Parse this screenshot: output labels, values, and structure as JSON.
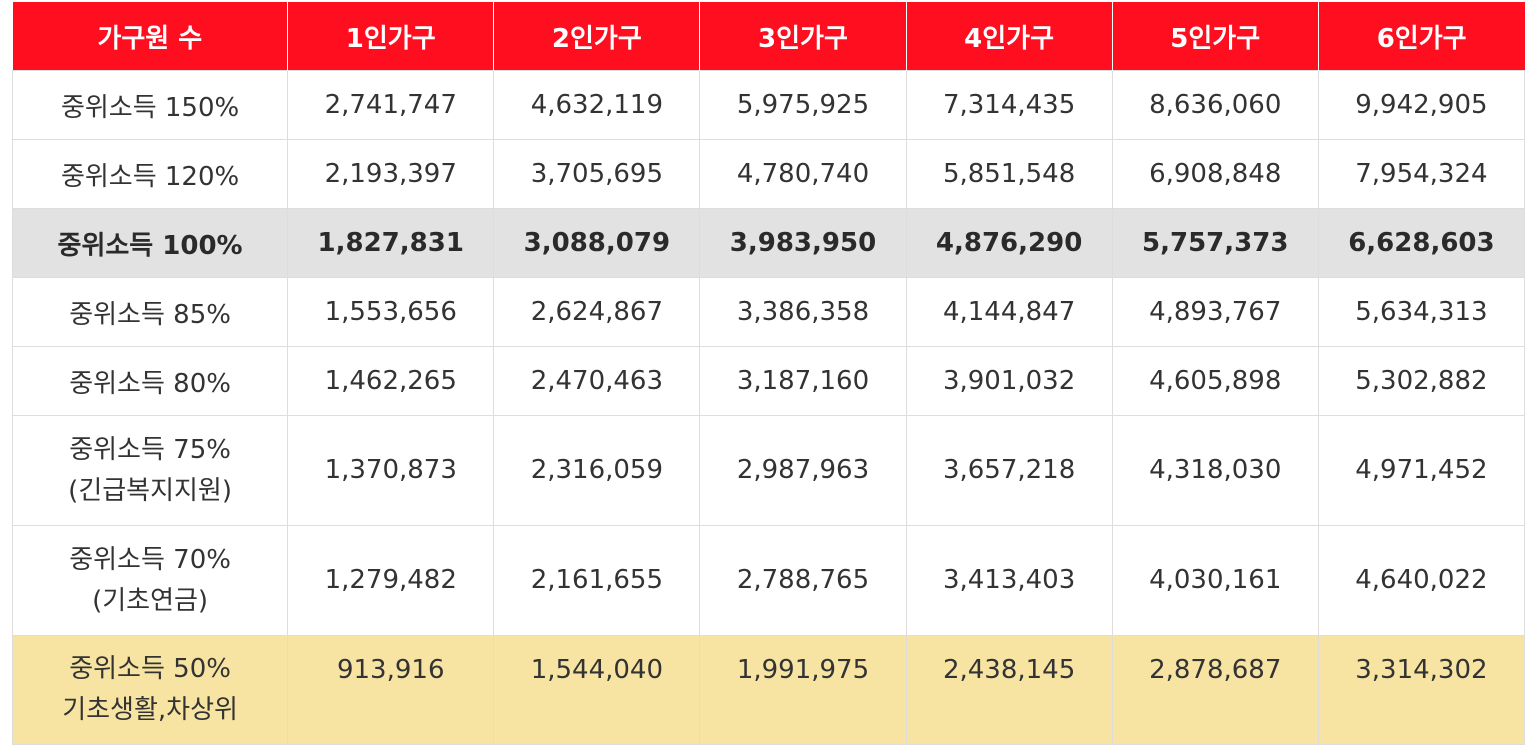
{
  "header": {
    "household_label": "가구원 수",
    "columns": [
      "1인가구",
      "2인가구",
      "3인가구",
      "4인가구",
      "5인가구",
      "6인가구"
    ]
  },
  "rows": [
    {
      "label": [
        "중위소득 150%"
      ],
      "values": [
        "2,741,747",
        "4,632,119",
        "5,975,925",
        "7,314,435",
        "8,636,060",
        "9,942,905"
      ]
    },
    {
      "label": [
        "중위소득 120%"
      ],
      "values": [
        "2,193,397",
        "3,705,695",
        "4,780,740",
        "5,851,548",
        "6,908,848",
        "7,954,324"
      ]
    },
    {
      "label": [
        "중위소득 100%"
      ],
      "values": [
        "1,827,831",
        "3,088,079",
        "3,983,950",
        "4,876,290",
        "5,757,373",
        "6,628,603"
      ]
    },
    {
      "label": [
        "중위소득 85%"
      ],
      "values": [
        "1,553,656",
        "2,624,867",
        "3,386,358",
        "4,144,847",
        "4,893,767",
        "5,634,313"
      ]
    },
    {
      "label": [
        "중위소득 80%"
      ],
      "values": [
        "1,462,265",
        "2,470,463",
        "3,187,160",
        "3,901,032",
        "4,605,898",
        "5,302,882"
      ]
    },
    {
      "label": [
        "중위소득 75%",
        "(긴급복지지원)"
      ],
      "values": [
        "1,370,873",
        "2,316,059",
        "2,987,963",
        "3,657,218",
        "4,318,030",
        "4,971,452"
      ]
    },
    {
      "label": [
        "중위소득 70%",
        "(기초연금)"
      ],
      "values": [
        "1,279,482",
        "2,161,655",
        "2,788,765",
        "3,413,403",
        "4,030,161",
        "4,640,022"
      ]
    },
    {
      "label": [
        "중위소득 50%",
        "기초생활,차상위"
      ],
      "values": [
        "913,916",
        "1,544,040",
        "1,991,975",
        "2,438,145",
        "2,878,687",
        "3,314,302"
      ]
    }
  ],
  "colors": {
    "header_bg": "#ff0e1f",
    "highlight_row_bg": "#e2e2e2",
    "yellow_row_bg": "#f7e4a3"
  }
}
